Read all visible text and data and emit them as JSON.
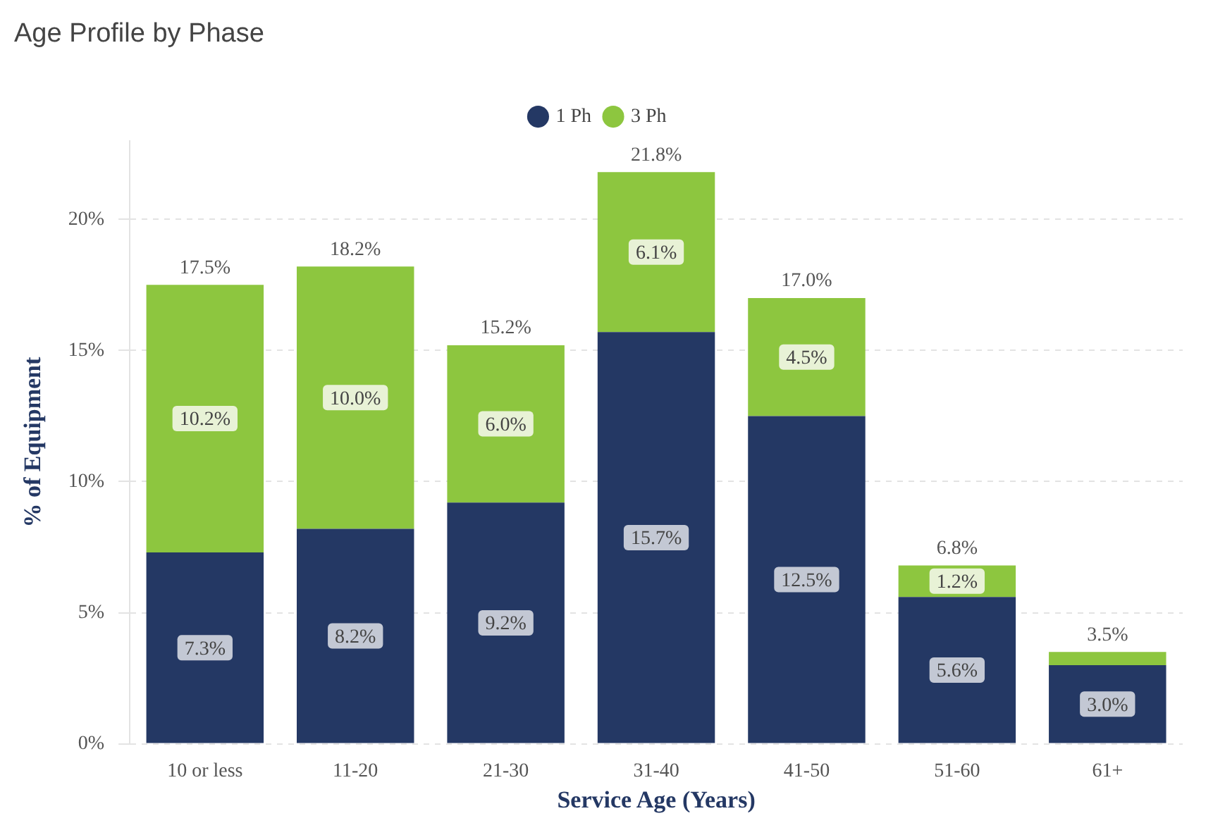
{
  "chart_data": {
    "type": "bar",
    "title": "Age Profile by Phase",
    "xlabel": "Service Age (Years)",
    "ylabel": "% of Equipment",
    "categories": [
      "10 or less",
      "11-20",
      "21-30",
      "31-40",
      "41-50",
      "51-60",
      "61+"
    ],
    "series": [
      {
        "name": "1 Ph",
        "color": "#243864",
        "values": [
          7.3,
          8.2,
          9.2,
          15.7,
          12.5,
          5.6,
          3.0
        ],
        "value_labels": [
          "7.3%",
          "8.2%",
          "9.2%",
          "15.7%",
          "12.5%",
          "5.6%",
          "3.0%"
        ]
      },
      {
        "name": "3 Ph",
        "color": "#8dc63f",
        "values": [
          10.2,
          10.0,
          6.0,
          6.1,
          4.5,
          1.2,
          0.5
        ],
        "value_labels": [
          "10.2%",
          "10.0%",
          "6.0%",
          "6.1%",
          "4.5%",
          "1.2%",
          null
        ]
      }
    ],
    "totals": [
      "17.5%",
      "18.2%",
      "15.2%",
      "21.8%",
      "17.0%",
      "6.8%",
      "3.5%"
    ],
    "stacked": true,
    "ylim": [
      0,
      23
    ],
    "yticks": [
      {
        "value": 0,
        "label": "0%"
      },
      {
        "value": 5,
        "label": "5%"
      },
      {
        "value": 10,
        "label": "10%"
      },
      {
        "value": 15,
        "label": "15%"
      },
      {
        "value": 20,
        "label": "20%"
      }
    ],
    "grid": "y",
    "legend": "top"
  }
}
